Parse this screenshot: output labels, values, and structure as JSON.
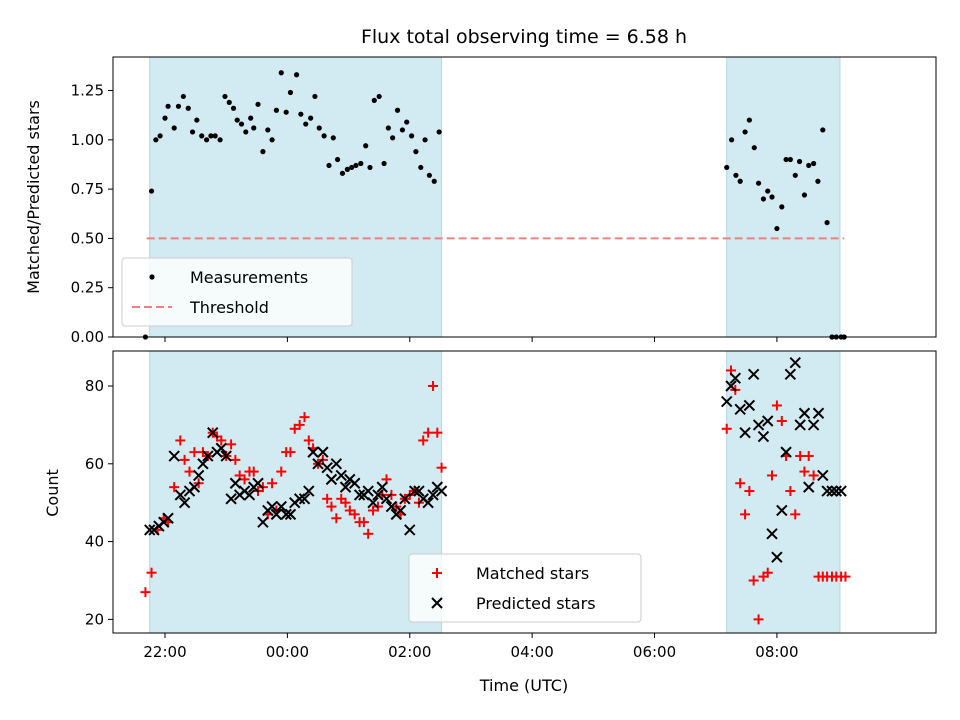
{
  "colors": {
    "background": "#ffffff",
    "shade": "#add8e6",
    "measurement": "#000000",
    "threshold": "#f08080",
    "matched": "#ff0000",
    "predicted": "#000000"
  },
  "chart_data": [
    {
      "type": "scatter",
      "title": "Flux total observing time = 6.58 h",
      "xlabel": "",
      "ylabel": "Matched/Predicted stars",
      "xlim": [
        -2.85,
        10.6
      ],
      "ylim": [
        0,
        1.42
      ],
      "x_ticks": [
        -2,
        0,
        2,
        4,
        6,
        8
      ],
      "x_tick_labels": [],
      "y_ticks": [
        0,
        0.25,
        0.5,
        0.75,
        1.0,
        1.25
      ],
      "y_tick_labels": [
        "0.00",
        "0.25",
        "0.50",
        "0.75",
        "1.00",
        "1.25"
      ],
      "shaded_regions": [
        [
          -2.25,
          2.52
        ],
        [
          7.18,
          9.03
        ]
      ],
      "threshold": {
        "name": "Threshold",
        "y": 0.5,
        "x_range": [
          -2.3,
          9.1
        ]
      },
      "legend": {
        "position": "lower-left",
        "entries": [
          "Measurements",
          "Threshold"
        ]
      },
      "series": [
        {
          "name": "Measurements",
          "x": [
            -2.32,
            -2.22,
            -2.15,
            -2.08,
            -2.0,
            -1.95,
            -1.85,
            -1.78,
            -1.7,
            -1.62,
            -1.55,
            -1.48,
            -1.4,
            -1.32,
            -1.25,
            -1.18,
            -1.1,
            -1.02,
            -0.95,
            -0.88,
            -0.82,
            -0.75,
            -0.68,
            -0.6,
            -0.55,
            -0.48,
            -0.4,
            -0.32,
            -0.25,
            -0.18,
            -0.1,
            -0.02,
            0.05,
            0.15,
            0.22,
            0.3,
            0.38,
            0.45,
            0.52,
            0.6,
            0.68,
            0.75,
            0.82,
            0.9,
            0.98,
            1.05,
            1.12,
            1.2,
            1.28,
            1.35,
            1.42,
            1.5,
            1.58,
            1.65,
            1.72,
            1.8,
            1.88,
            1.95,
            2.03,
            2.1,
            2.18,
            2.25,
            2.32,
            2.4,
            2.48,
            7.18,
            7.26,
            7.33,
            7.4,
            7.48,
            7.55,
            7.63,
            7.7,
            7.78,
            7.85,
            7.92,
            8.0,
            8.08,
            8.15,
            8.22,
            8.3,
            8.37,
            8.45,
            8.52,
            8.6,
            8.67,
            8.75,
            8.82,
            8.9,
            8.97,
            9.05,
            9.1
          ],
          "y": [
            0.0,
            0.74,
            1.0,
            1.02,
            1.11,
            1.17,
            1.06,
            1.17,
            1.22,
            1.16,
            1.04,
            1.1,
            1.02,
            1.0,
            1.02,
            1.02,
            1.0,
            1.22,
            1.19,
            1.16,
            1.1,
            1.08,
            1.04,
            1.11,
            1.06,
            1.18,
            0.94,
            1.05,
            1.0,
            1.15,
            1.34,
            1.14,
            1.24,
            1.33,
            1.13,
            1.08,
            1.11,
            1.22,
            1.06,
            1.02,
            0.87,
            1.01,
            0.9,
            0.83,
            0.85,
            0.86,
            0.87,
            0.88,
            0.97,
            0.86,
            1.2,
            1.22,
            0.88,
            1.06,
            1.01,
            1.15,
            1.05,
            1.09,
            1.02,
            0.94,
            0.86,
            1.0,
            0.82,
            0.79,
            1.04,
            0.86,
            1.0,
            0.82,
            0.79,
            1.04,
            1.1,
            0.96,
            0.78,
            0.7,
            0.74,
            0.71,
            0.55,
            0.66,
            0.9,
            0.9,
            0.82,
            0.89,
            0.72,
            0.87,
            0.88,
            0.79,
            1.05,
            0.58,
            0.0,
            0.0,
            0.0,
            0.0
          ]
        }
      ]
    },
    {
      "type": "scatter",
      "title": "",
      "xlabel": "Time (UTC)",
      "ylabel": "Count",
      "xlim": [
        -2.85,
        10.6
      ],
      "ylim": [
        16.5,
        89
      ],
      "x_ticks": [
        -2,
        0,
        2,
        4,
        6,
        8
      ],
      "x_tick_labels": [
        "22:00",
        "00:00",
        "02:00",
        "04:00",
        "06:00",
        "08:00"
      ],
      "y_ticks": [
        20,
        40,
        60,
        80
      ],
      "y_tick_labels": [
        "20",
        "40",
        "60",
        "80"
      ],
      "shaded_regions": [
        [
          -2.25,
          2.52
        ],
        [
          7.18,
          9.03
        ]
      ],
      "legend": {
        "position": "lower-center",
        "entries": [
          "Matched stars",
          "Predicted stars"
        ]
      },
      "series": [
        {
          "name": "Matched stars",
          "x": [
            -2.32,
            -2.22,
            -2.12,
            -2.02,
            -1.95,
            -1.85,
            -1.75,
            -1.68,
            -1.6,
            -1.52,
            -1.45,
            -1.38,
            -1.3,
            -1.22,
            -1.15,
            -1.08,
            -1.0,
            -0.92,
            -0.85,
            -0.78,
            -0.7,
            -0.62,
            -0.55,
            -0.48,
            -0.4,
            -0.32,
            -0.25,
            -0.18,
            -0.1,
            -0.02,
            0.05,
            0.12,
            0.2,
            0.28,
            0.35,
            0.42,
            0.5,
            0.58,
            0.65,
            0.72,
            0.8,
            0.88,
            0.95,
            1.02,
            1.1,
            1.18,
            1.25,
            1.32,
            1.4,
            1.48,
            1.55,
            1.62,
            1.7,
            1.78,
            1.85,
            1.92,
            2.0,
            2.08,
            2.15,
            2.22,
            2.3,
            2.38,
            2.45,
            2.52,
            7.18,
            7.25,
            7.32,
            7.4,
            7.48,
            7.55,
            7.62,
            7.7,
            7.78,
            7.85,
            7.92,
            8.0,
            8.08,
            8.15,
            8.22,
            8.3,
            8.38,
            8.45,
            8.52,
            8.6,
            8.68,
            8.75,
            8.82,
            8.9,
            8.97,
            9.05,
            9.12
          ],
          "y": [
            27,
            32,
            43,
            46,
            45,
            54,
            66,
            61,
            58,
            63,
            55,
            63,
            62,
            68,
            67,
            66,
            62,
            65,
            61,
            57,
            56,
            58,
            58,
            53,
            54,
            47,
            55,
            48,
            58,
            63,
            63,
            69,
            70,
            72,
            66,
            64,
            60,
            61,
            51,
            49,
            46,
            51,
            50,
            48,
            47,
            45,
            45,
            42,
            48,
            49,
            52,
            56,
            52,
            49,
            47,
            51,
            52,
            53,
            50,
            66,
            68,
            80,
            68,
            59,
            69,
            84,
            79,
            55,
            47,
            53,
            30,
            20,
            31,
            32,
            57,
            75,
            71,
            62,
            53,
            47,
            62,
            58,
            62,
            57,
            31,
            31,
            31,
            31,
            31,
            31,
            31
          ],
          "marker": "plus"
        },
        {
          "name": "Predicted stars",
          "x": [
            -2.25,
            -2.18,
            -2.1,
            -2.02,
            -1.95,
            -1.85,
            -1.75,
            -1.68,
            -1.6,
            -1.52,
            -1.45,
            -1.38,
            -1.3,
            -1.22,
            -1.15,
            -1.08,
            -1.0,
            -0.92,
            -0.85,
            -0.78,
            -0.7,
            -0.62,
            -0.55,
            -0.48,
            -0.4,
            -0.32,
            -0.25,
            -0.18,
            -0.1,
            -0.02,
            0.05,
            0.12,
            0.2,
            0.28,
            0.35,
            0.42,
            0.5,
            0.58,
            0.65,
            0.72,
            0.8,
            0.88,
            0.95,
            1.02,
            1.1,
            1.18,
            1.25,
            1.32,
            1.4,
            1.48,
            1.55,
            1.62,
            1.7,
            1.78,
            1.85,
            1.92,
            2.0,
            2.08,
            2.15,
            2.22,
            2.3,
            2.38,
            2.45,
            2.52,
            7.18,
            7.25,
            7.32,
            7.4,
            7.48,
            7.55,
            7.62,
            7.7,
            7.78,
            7.85,
            7.92,
            8.0,
            8.08,
            8.15,
            8.22,
            8.3,
            8.38,
            8.45,
            8.52,
            8.6,
            8.68,
            8.75,
            8.82,
            8.9,
            8.97,
            9.05
          ],
          "y": [
            43,
            43,
            44,
            45,
            46,
            62,
            52,
            50,
            53,
            54,
            57,
            60,
            62,
            68,
            63,
            64,
            62,
            51,
            55,
            52,
            53,
            52,
            54,
            55,
            45,
            48,
            49,
            47,
            49,
            47,
            47,
            50,
            51,
            51,
            53,
            63,
            60,
            63,
            59,
            56,
            60,
            57,
            54,
            56,
            55,
            52,
            52,
            53,
            50,
            52,
            54,
            51,
            49,
            47,
            48,
            51,
            43,
            53,
            53,
            51,
            50,
            52,
            54,
            53,
            76,
            80,
            82,
            74,
            68,
            75,
            83,
            70,
            67,
            71,
            42,
            36,
            48,
            63,
            83,
            86,
            70,
            73,
            54,
            70,
            73,
            57,
            53,
            53,
            53,
            53
          ],
          "marker": "x"
        }
      ]
    }
  ]
}
